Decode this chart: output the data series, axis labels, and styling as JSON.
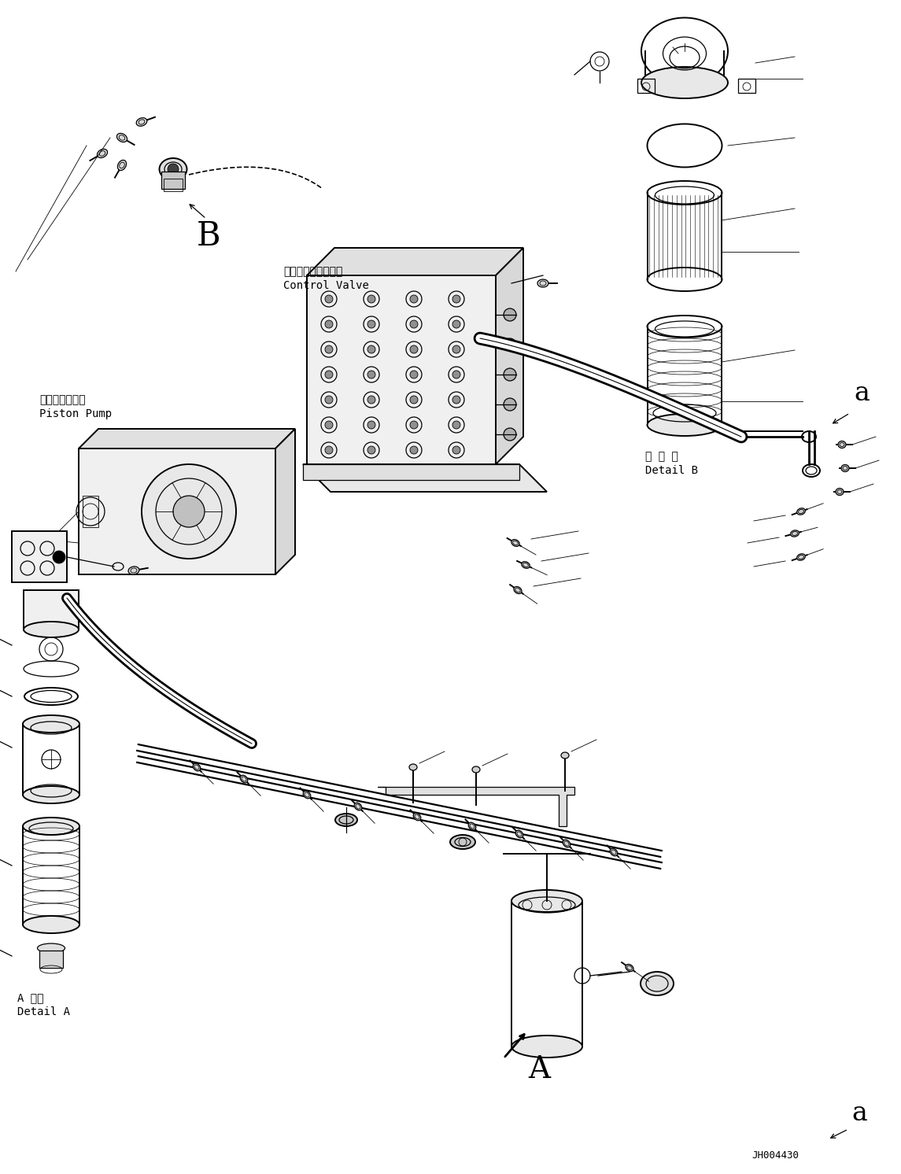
{
  "bg_color": "#ffffff",
  "line_color": "#000000",
  "fig_width": 11.45,
  "fig_height": 14.92,
  "dpi": 100,
  "labels": {
    "control_valve_jp": "コントロールバルブ",
    "control_valve_en": "Control Valve",
    "piston_pump_jp": "ピストンポンプ",
    "piston_pump_en": "Piston Pump",
    "detail_b_jp": "日 詳 細",
    "detail_b_en": "Detail B",
    "detail_a_jp": "A 詳細",
    "detail_a_en": "Detail A",
    "label_B": "B",
    "label_A": "A",
    "label_a1": "a",
    "label_a2": "a",
    "diagram_id": "JH004430"
  }
}
